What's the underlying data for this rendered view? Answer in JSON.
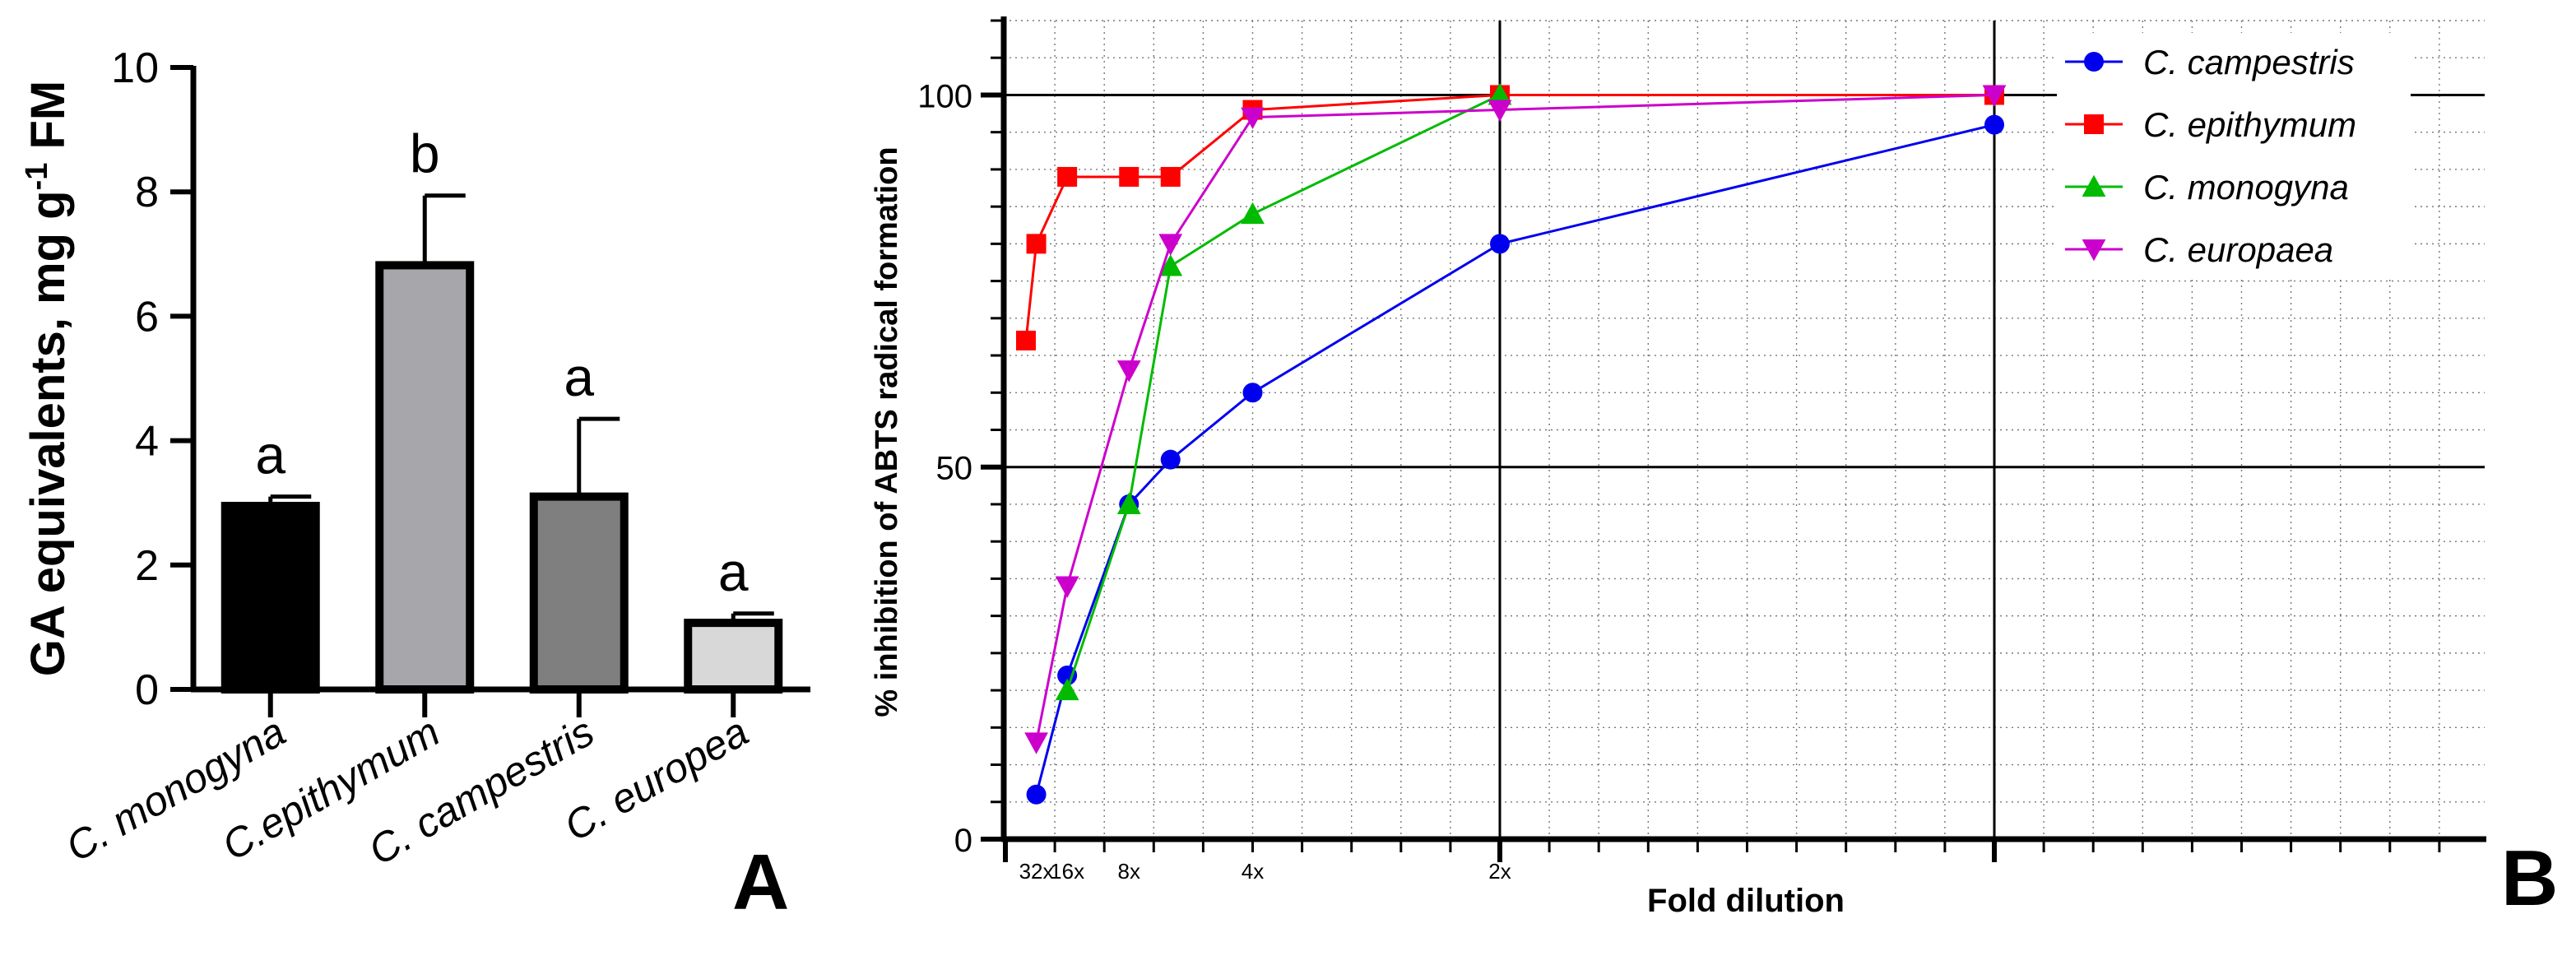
{
  "chart_data": [
    {
      "id": "panel-a",
      "type": "bar",
      "panel_label": "A",
      "ylabel": "GA equivalents, mg g-1 FM",
      "ylabel_parts": {
        "main": "GA equivalents, mg g",
        "sup": "-1",
        "tail": " FM"
      },
      "xlabel": "",
      "ylim": [
        0,
        10
      ],
      "yticks": [
        0,
        2,
        4,
        6,
        8,
        10
      ],
      "categories": [
        "C. monogyna",
        "C.epithymum",
        "C. campestris",
        "C. europea"
      ],
      "values": [
        2.95,
        6.82,
        3.1,
        1.07
      ],
      "errors": [
        0.15,
        1.12,
        1.25,
        0.15
      ],
      "letters": [
        "a",
        "b",
        "a",
        "a"
      ],
      "colors": [
        "#000000",
        "#a6a6ab",
        "#7f7f7f",
        "#d8d8d8"
      ]
    },
    {
      "id": "panel-b",
      "type": "line",
      "panel_label": "B",
      "xlabel": "Fold dilution",
      "ylabel": "% inhibition of ABTS radical formation",
      "ylim": [
        0,
        110
      ],
      "xlim": [
        0,
        1.0
      ],
      "yticks": [
        0,
        50,
        100
      ],
      "xtick_labels": [
        {
          "x": 0.03125,
          "label": "32x"
        },
        {
          "x": 0.0625,
          "label": "16x"
        },
        {
          "x": 0.125,
          "label": "8x"
        },
        {
          "x": 0.25,
          "label": "4x"
        },
        {
          "x": 0.5,
          "label": "2x"
        }
      ],
      "x_major_lines": [
        0.5
      ],
      "legend_position": "top-right",
      "series": [
        {
          "name": "C. campestris",
          "color": "#0000ee",
          "marker": "circle",
          "x": [
            0.03125,
            0.0625,
            0.125,
            0.167,
            0.25,
            0.5,
            1.0
          ],
          "y": [
            6,
            22,
            45,
            51,
            60,
            80,
            96
          ]
        },
        {
          "name": "C. epithymum",
          "color": "#ff0000",
          "marker": "square",
          "x": [
            0.0208,
            0.03125,
            0.0625,
            0.125,
            0.167,
            0.25,
            0.5,
            1.0
          ],
          "y": [
            67,
            80,
            89,
            89,
            89,
            98,
            100,
            100
          ]
        },
        {
          "name": "C. monogyna",
          "color": "#00bb00",
          "marker": "triangle-up",
          "x": [
            0.0625,
            0.125,
            0.167,
            0.25,
            0.5
          ],
          "y": [
            20,
            45,
            77,
            84,
            100
          ]
        },
        {
          "name": "C. europaea",
          "color": "#cc00cc",
          "marker": "triangle-down",
          "x": [
            0.03125,
            0.0625,
            0.125,
            0.167,
            0.25,
            0.5,
            1.0
          ],
          "y": [
            13,
            34,
            63,
            80,
            97,
            98,
            100
          ]
        }
      ]
    }
  ]
}
